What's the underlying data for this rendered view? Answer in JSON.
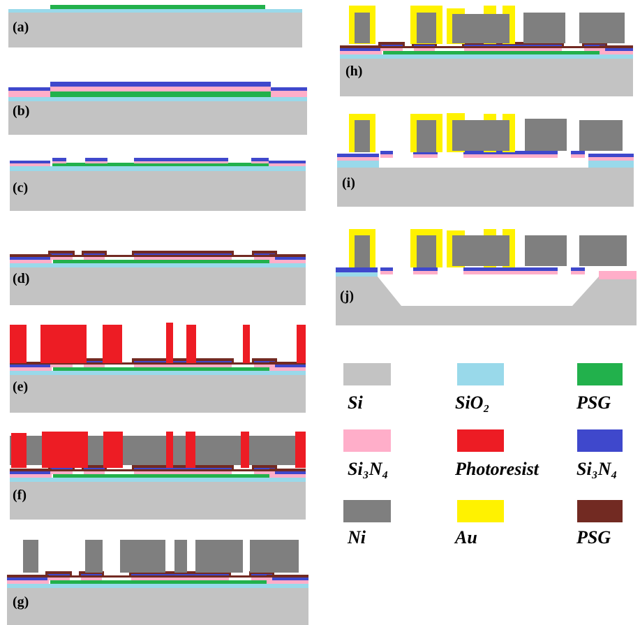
{
  "panels": {
    "a": "(a)",
    "b": "(b)",
    "c": "(c)",
    "d": "(d)",
    "e": "(e)",
    "f": "(f)",
    "g": "(g)",
    "h": "(h)",
    "i": "(i)",
    "j": "(j)"
  },
  "legend": [
    {
      "label": "Si"
    },
    {
      "label": "SiO₂"
    },
    {
      "label": "PSG"
    },
    {
      "label": "Si₃N₄"
    },
    {
      "label": "Photoresist"
    },
    {
      "label": "Si₃N₄"
    },
    {
      "label": "Ni"
    },
    {
      "label": "Au"
    },
    {
      "label": "PSG"
    }
  ]
}
